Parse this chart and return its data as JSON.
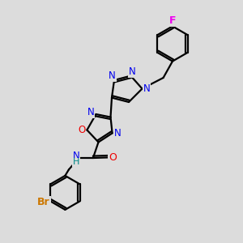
{
  "background_color": "#dcdcdc",
  "atom_colors": {
    "N": "#0000ee",
    "O": "#ee0000",
    "Br": "#cc7700",
    "F": "#ee00ee",
    "C": "#000000",
    "H": "#008888"
  },
  "bond_color": "#000000",
  "bond_width": 1.6
}
